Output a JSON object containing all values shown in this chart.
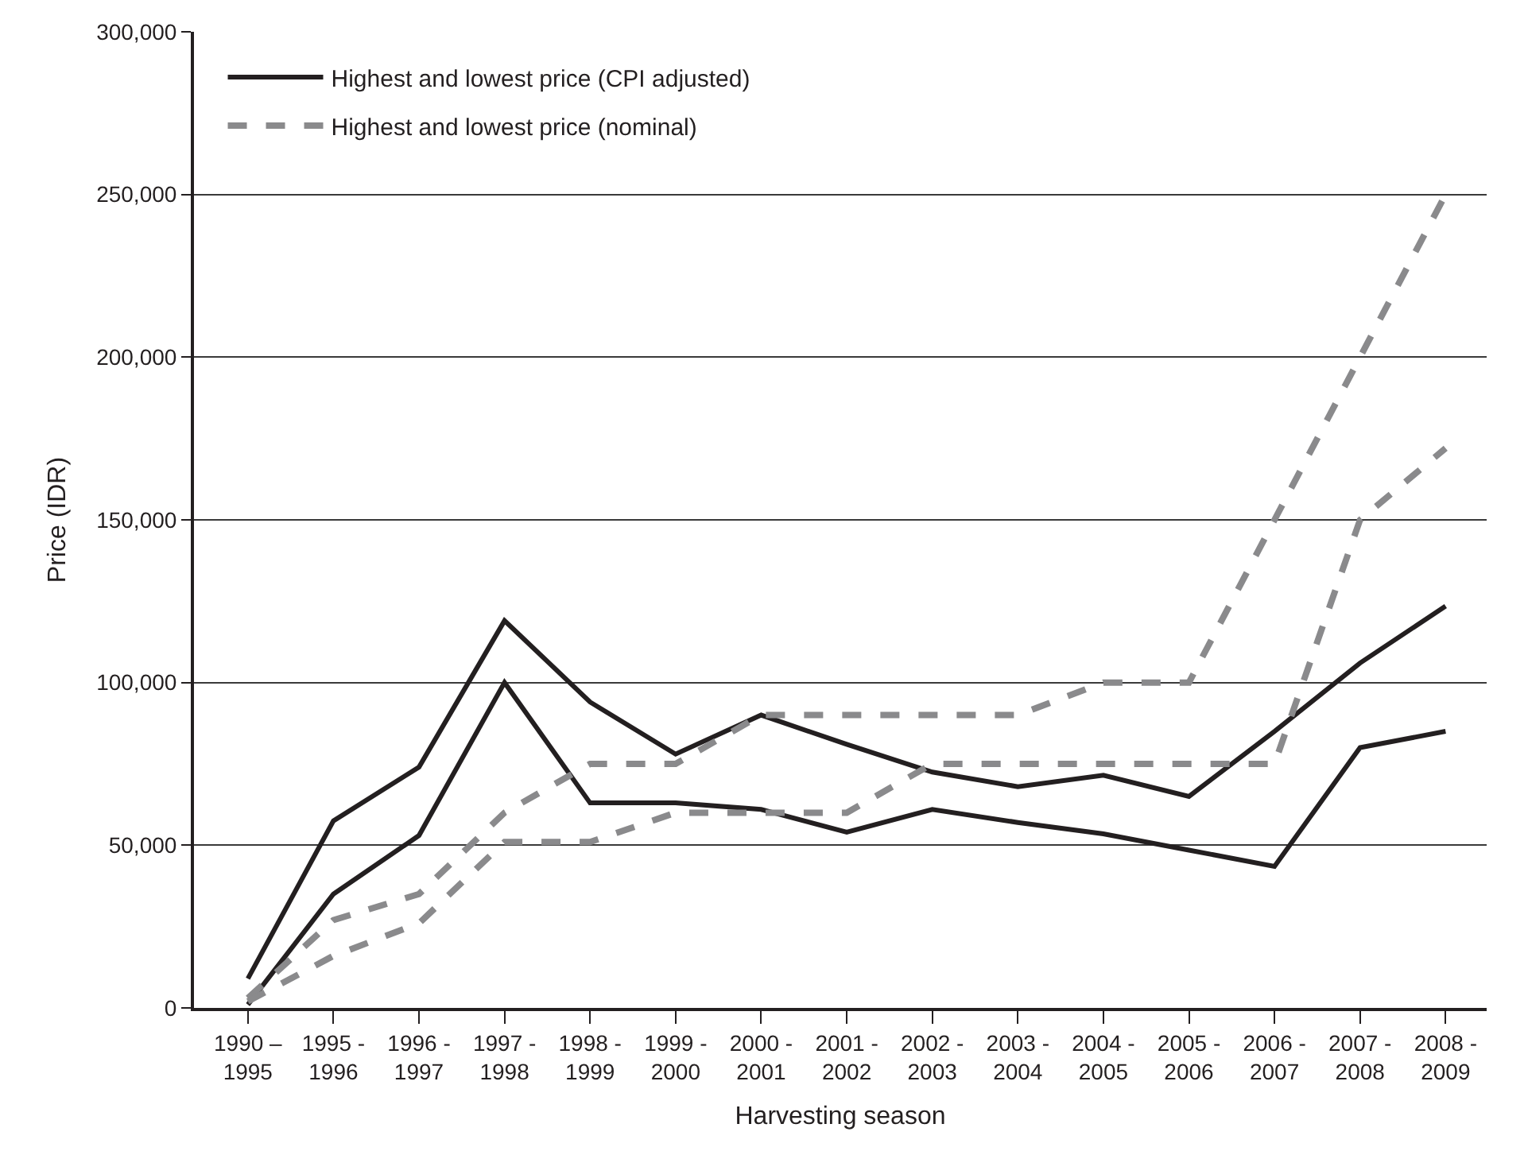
{
  "chart_data": {
    "type": "line",
    "xlabel": "Harvesting season",
    "ylabel": "Price (IDR)",
    "categories": [
      "1990 –\n1995",
      "1995 -\n1996",
      "1996 -\n1997",
      "1997 -\n1998",
      "1998 -\n1999",
      "1999 -\n2000",
      "2000 -\n2001",
      "2001 -\n2002",
      "2002 -\n2003",
      "2003 -\n2004",
      "2004 -\n2005",
      "2005 -\n2006",
      "2006 -\n2007",
      "2007 -\n2008",
      "2008 -\n2009"
    ],
    "series": [
      {
        "name": "Highest and lowest price (CPI adjusted)",
        "color": "#231f20",
        "line_style": "solid",
        "values": [
          9000,
          57500,
          74000,
          119000,
          94000,
          78000,
          90000,
          81000,
          72500,
          68000,
          71500,
          65000,
          85000,
          106000,
          123500
        ]
      },
      {
        "color": "#231f20",
        "line_style": "solid",
        "values": [
          1000,
          35000,
          53000,
          100000,
          63000,
          63000,
          61000,
          54000,
          61000,
          57000,
          53500,
          48500,
          43500,
          80000,
          85000
        ]
      },
      {
        "name": "Highest and lowest price (nominal)",
        "color": "#8a8a8c",
        "line_style": "dashed",
        "values": [
          3000,
          27000,
          35000,
          60000,
          75000,
          75000,
          90000,
          90000,
          90000,
          90000,
          100000,
          100000,
          150000,
          200000,
          250000
        ]
      },
      {
        "color": "#8a8a8c",
        "line_style": "dashed",
        "values": [
          2000,
          16000,
          26000,
          51000,
          51000,
          60000,
          60000,
          60000,
          75000,
          75000,
          75000,
          75000,
          75000,
          150000,
          172000
        ]
      }
    ],
    "ylim": [
      0,
      300000
    ],
    "yticks": [
      {
        "value": 0,
        "label": "0"
      },
      {
        "value": 50000,
        "label": "50,000"
      },
      {
        "value": 100000,
        "label": "100,000"
      },
      {
        "value": 150000,
        "label": "150,000"
      },
      {
        "value": 200000,
        "label": "200,000"
      },
      {
        "value": 250000,
        "label": "250,000"
      },
      {
        "value": 300000,
        "label": "300,000"
      }
    ],
    "grid": "y",
    "legend": "top left",
    "marker": "none"
  }
}
